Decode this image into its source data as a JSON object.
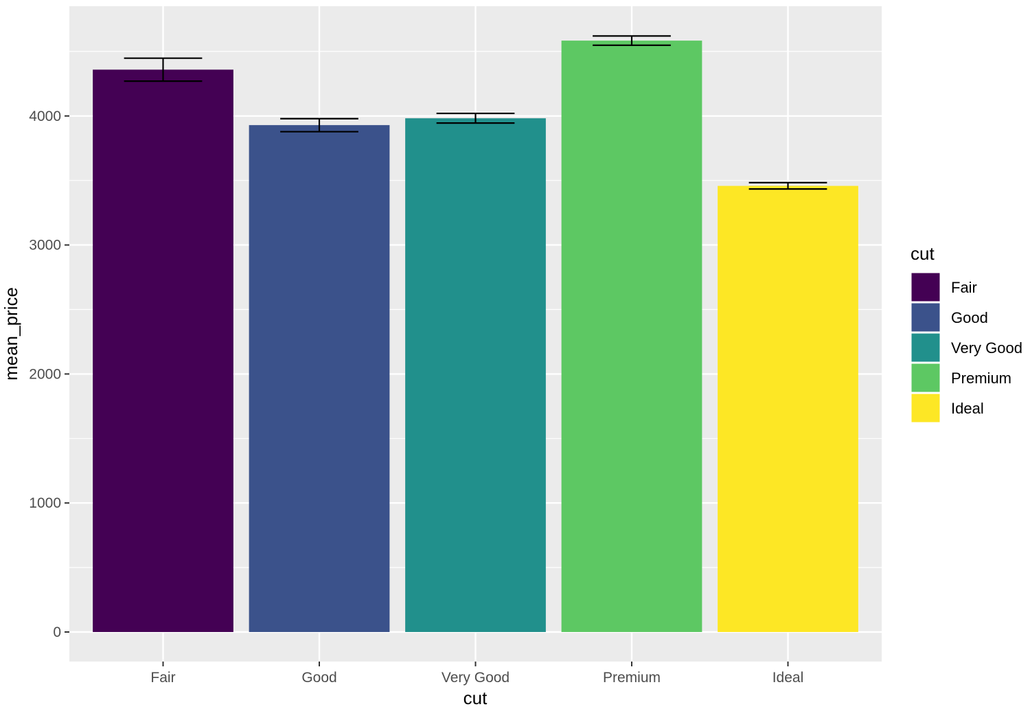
{
  "chart_data": {
    "type": "bar",
    "categories": [
      "Fair",
      "Good",
      "Very Good",
      "Premium",
      "Ideal"
    ],
    "values": [
      4359,
      3929,
      3982,
      4584,
      3458
    ],
    "error_bars": [
      {
        "low": 4270,
        "high": 4448
      },
      {
        "low": 3878,
        "high": 3979
      },
      {
        "low": 3945,
        "high": 4020
      },
      {
        "low": 4548,
        "high": 4620
      },
      {
        "low": 3434,
        "high": 3483
      }
    ],
    "colors": [
      "#440154",
      "#3B528B",
      "#21908C",
      "#5DC863",
      "#FDE725"
    ],
    "xlabel": "cut",
    "ylabel": "mean_price",
    "ylim": [
      -250,
      4850
    ],
    "yticks": [
      0,
      1000,
      2000,
      3000,
      4000
    ],
    "ytick_labels": [
      "0",
      "1000",
      "2000",
      "3000",
      "4000"
    ],
    "grid": true,
    "panel_background": "#EBEBEB",
    "legend": {
      "title": "cut",
      "position": "right",
      "entries": [
        "Fair",
        "Good",
        "Very Good",
        "Premium",
        "Ideal"
      ]
    }
  }
}
